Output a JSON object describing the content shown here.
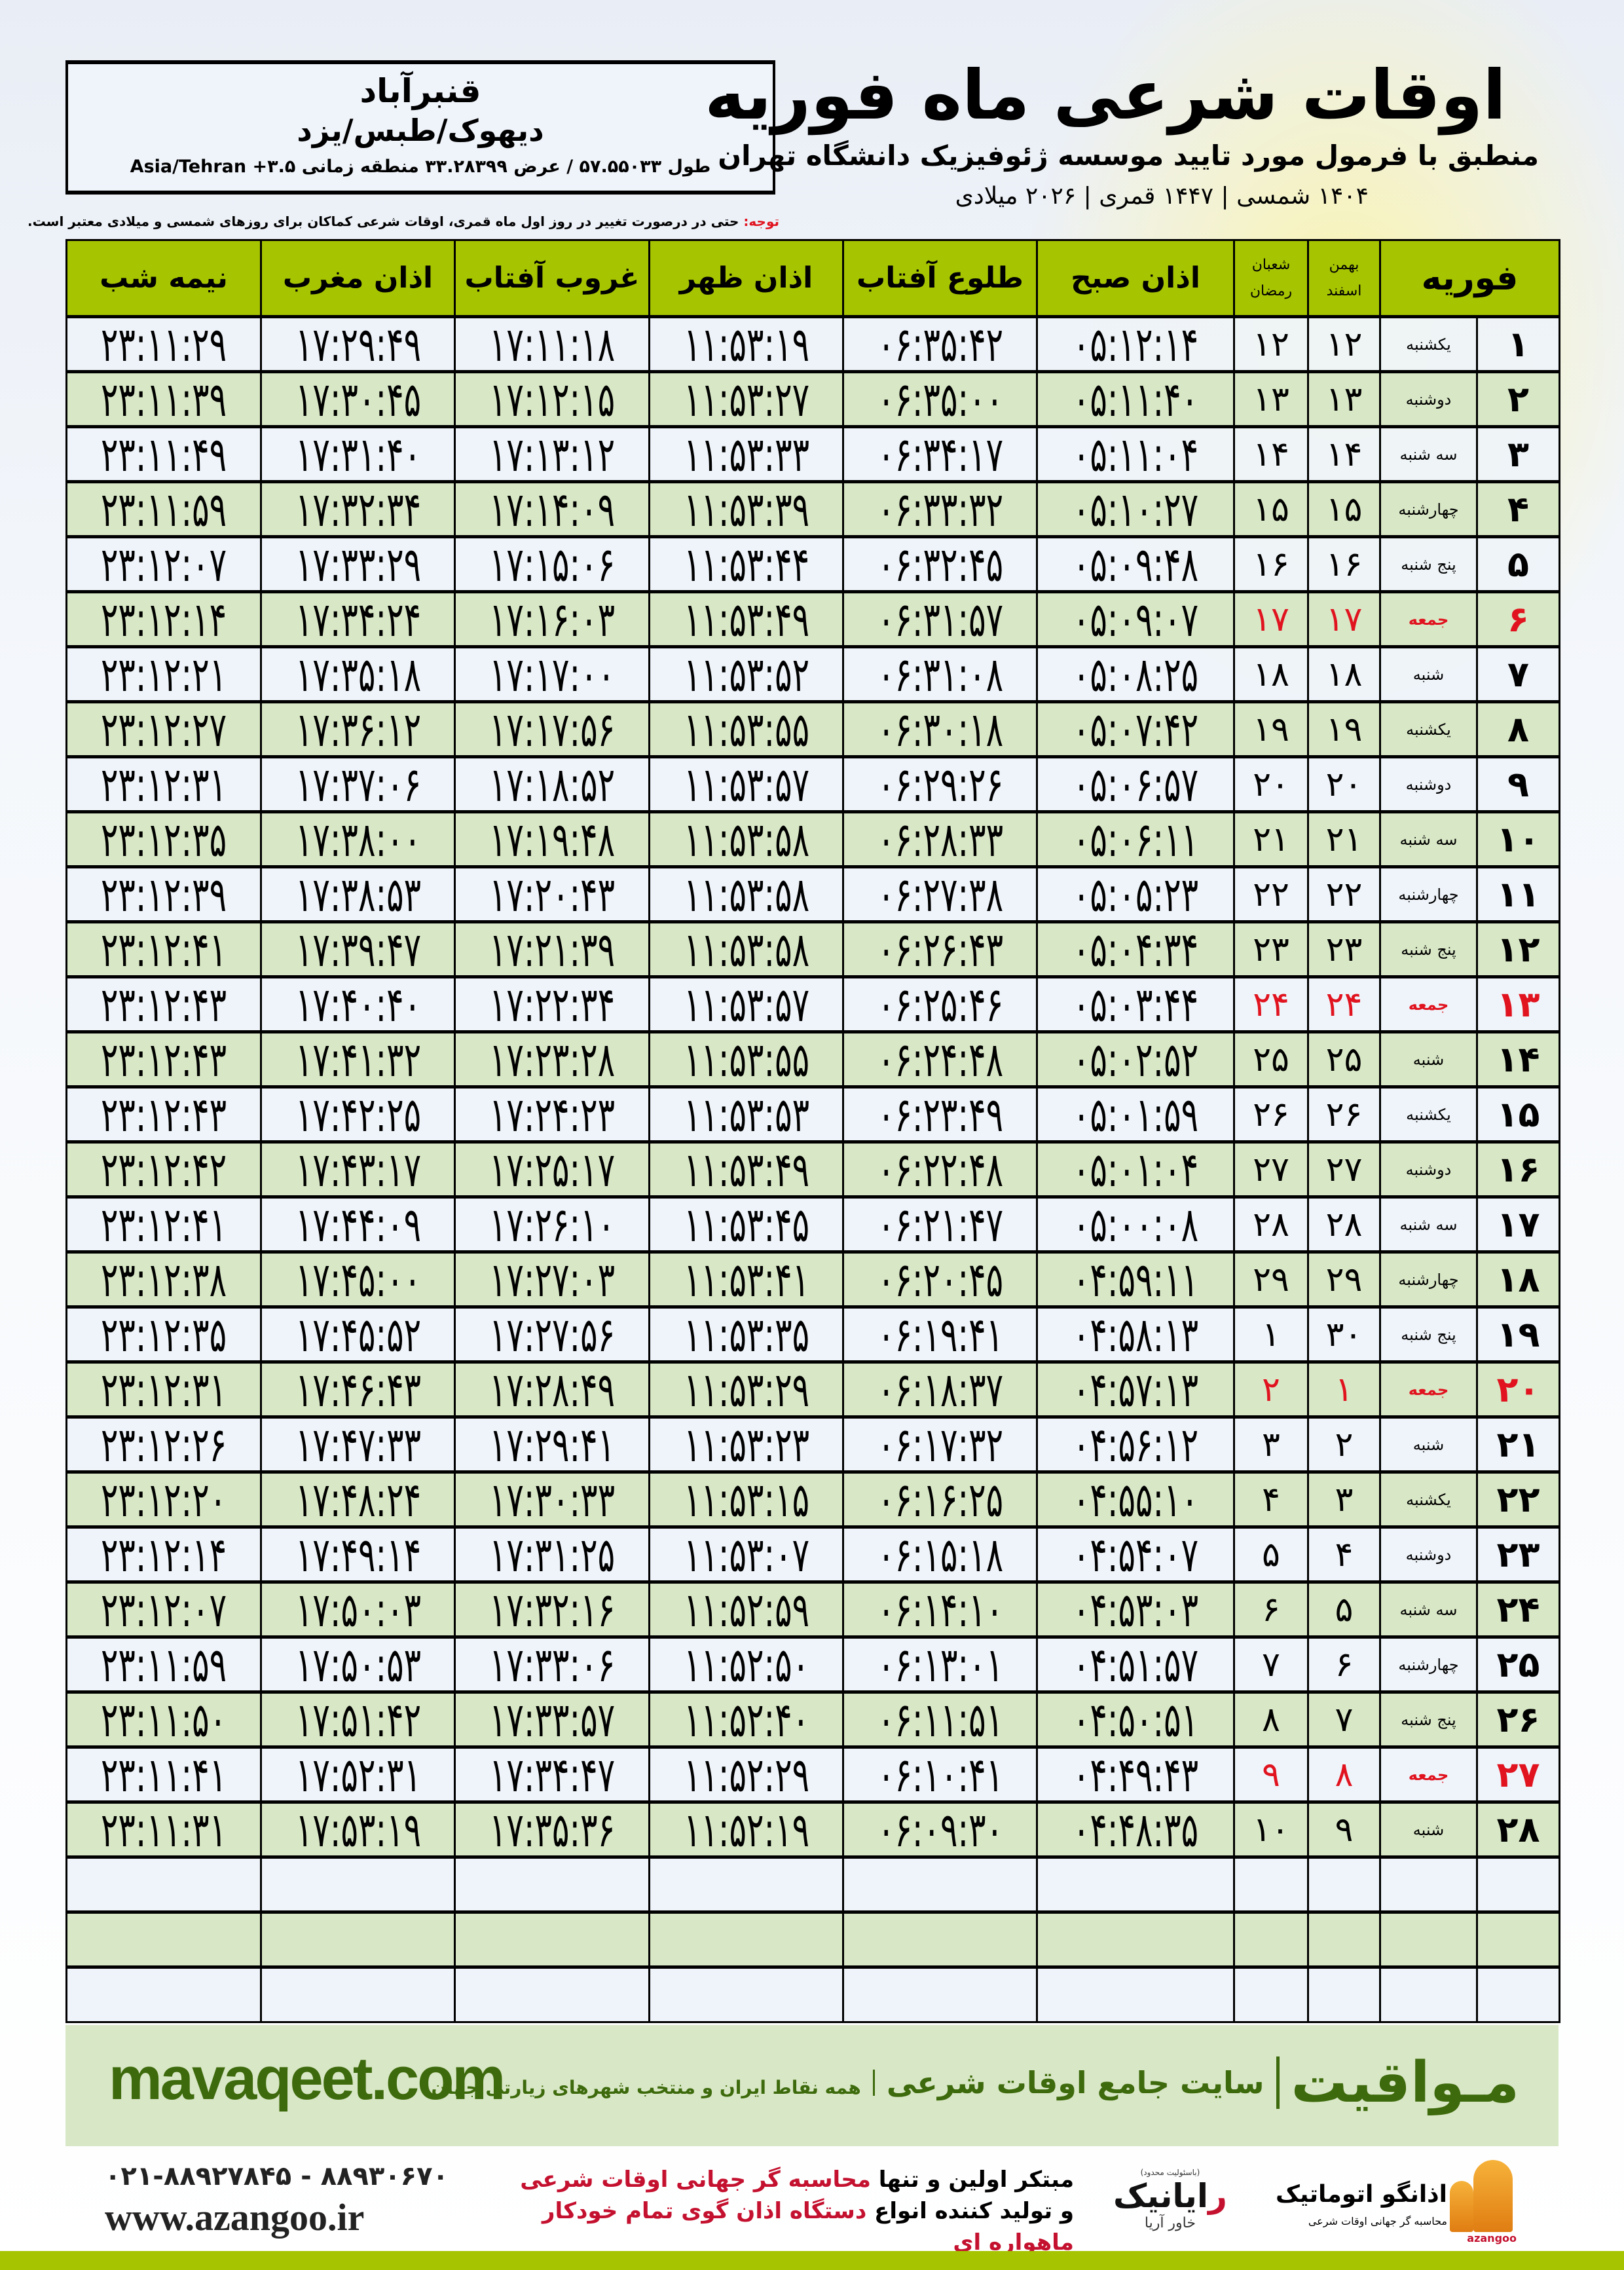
{
  "header": {
    "title": "اوقات شرعی ماه فوریه",
    "subtitle": "منطبق با فرمول مورد تایید موسسه ژئوفیزیک دانشگاه تهران",
    "dates": "۱۴۰۴ شمسی | ۱۴۴۷ قمری | ۲۰۲۶ میلادی"
  },
  "location": {
    "city": "قنبرآباد",
    "region": "دیهوک/طبس/یزد",
    "coords": "طول ۵۷.۵۵۰۳۳ / عرض ۳۳.۲۸۳۹۹ منطقه زمانی ۳.۵+ Asia/Tehran"
  },
  "note": {
    "label": "توجه:",
    "text": " حتی در درصورت تغییر در روز اول ماه قمری، اوقات شرعی کماکان برای روزهای شمسی و میلادی معتبر است."
  },
  "colors": {
    "header_green": "#a6c400",
    "row_green": "#d8e7c5",
    "holiday_red": "#e0131f",
    "brand_green": "#3d6a0c"
  },
  "table": {
    "columns": {
      "month": "فوریه",
      "shamsi_1": "بهمن",
      "shamsi_2": "اسفند",
      "qamari_1": "شعبان",
      "qamari_2": "رمضان",
      "sobh": "اذان صبح",
      "tolu": "طلوع آفتاب",
      "zohr": "اذان ظهر",
      "ghorub": "غروب آفتاب",
      "maghreb": "اذان مغرب",
      "nime": "نیمه شب"
    },
    "rows": [
      {
        "d": "۱",
        "day": "یکشنبه",
        "sh": "۱۲",
        "q": "۱۲",
        "sobh": "۰۵:۱۲:۱۴",
        "tolu": "۰۶:۳۵:۴۲",
        "zohr": "۱۱:۵۳:۱۹",
        "ghorub": "۱۷:۱۱:۱۸",
        "maghreb": "۱۷:۲۹:۴۹",
        "nime": "۲۳:۱۱:۲۹",
        "holiday": false
      },
      {
        "d": "۲",
        "day": "دوشنبه",
        "sh": "۱۳",
        "q": "۱۳",
        "sobh": "۰۵:۱۱:۴۰",
        "tolu": "۰۶:۳۵:۰۰",
        "zohr": "۱۱:۵۳:۲۷",
        "ghorub": "۱۷:۱۲:۱۵",
        "maghreb": "۱۷:۳۰:۴۵",
        "nime": "۲۳:۱۱:۳۹",
        "holiday": false
      },
      {
        "d": "۳",
        "day": "سه شنبه",
        "sh": "۱۴",
        "q": "۱۴",
        "sobh": "۰۵:۱۱:۰۴",
        "tolu": "۰۶:۳۴:۱۷",
        "zohr": "۱۱:۵۳:۳۳",
        "ghorub": "۱۷:۱۳:۱۲",
        "maghreb": "۱۷:۳۱:۴۰",
        "nime": "۲۳:۱۱:۴۹",
        "holiday": false
      },
      {
        "d": "۴",
        "day": "چهارشنبه",
        "sh": "۱۵",
        "q": "۱۵",
        "sobh": "۰۵:۱۰:۲۷",
        "tolu": "۰۶:۳۳:۳۲",
        "zohr": "۱۱:۵۳:۳۹",
        "ghorub": "۱۷:۱۴:۰۹",
        "maghreb": "۱۷:۳۲:۳۴",
        "nime": "۲۳:۱۱:۵۹",
        "holiday": false
      },
      {
        "d": "۵",
        "day": "پنج شنبه",
        "sh": "۱۶",
        "q": "۱۶",
        "sobh": "۰۵:۰۹:۴۸",
        "tolu": "۰۶:۳۲:۴۵",
        "zohr": "۱۱:۵۳:۴۴",
        "ghorub": "۱۷:۱۵:۰۶",
        "maghreb": "۱۷:۳۳:۲۹",
        "nime": "۲۳:۱۲:۰۷",
        "holiday": false
      },
      {
        "d": "۶",
        "day": "جمعه",
        "sh": "۱۷",
        "q": "۱۷",
        "sobh": "۰۵:۰۹:۰۷",
        "tolu": "۰۶:۳۱:۵۷",
        "zohr": "۱۱:۵۳:۴۹",
        "ghorub": "۱۷:۱۶:۰۳",
        "maghreb": "۱۷:۳۴:۲۴",
        "nime": "۲۳:۱۲:۱۴",
        "holiday": true
      },
      {
        "d": "۷",
        "day": "شنبه",
        "sh": "۱۸",
        "q": "۱۸",
        "sobh": "۰۵:۰۸:۲۵",
        "tolu": "۰۶:۳۱:۰۸",
        "zohr": "۱۱:۵۳:۵۲",
        "ghorub": "۱۷:۱۷:۰۰",
        "maghreb": "۱۷:۳۵:۱۸",
        "nime": "۲۳:۱۲:۲۱",
        "holiday": false
      },
      {
        "d": "۸",
        "day": "یکشنبه",
        "sh": "۱۹",
        "q": "۱۹",
        "sobh": "۰۵:۰۷:۴۲",
        "tolu": "۰۶:۳۰:۱۸",
        "zohr": "۱۱:۵۳:۵۵",
        "ghorub": "۱۷:۱۷:۵۶",
        "maghreb": "۱۷:۳۶:۱۲",
        "nime": "۲۳:۱۲:۲۷",
        "holiday": false
      },
      {
        "d": "۹",
        "day": "دوشنبه",
        "sh": "۲۰",
        "q": "۲۰",
        "sobh": "۰۵:۰۶:۵۷",
        "tolu": "۰۶:۲۹:۲۶",
        "zohr": "۱۱:۵۳:۵۷",
        "ghorub": "۱۷:۱۸:۵۲",
        "maghreb": "۱۷:۳۷:۰۶",
        "nime": "۲۳:۱۲:۳۱",
        "holiday": false
      },
      {
        "d": "۱۰",
        "day": "سه شنبه",
        "sh": "۲۱",
        "q": "۲۱",
        "sobh": "۰۵:۰۶:۱۱",
        "tolu": "۰۶:۲۸:۳۳",
        "zohr": "۱۱:۵۳:۵۸",
        "ghorub": "۱۷:۱۹:۴۸",
        "maghreb": "۱۷:۳۸:۰۰",
        "nime": "۲۳:۱۲:۳۵",
        "holiday": false
      },
      {
        "d": "۱۱",
        "day": "چهارشنبه",
        "sh": "۲۲",
        "q": "۲۲",
        "sobh": "۰۵:۰۵:۲۳",
        "tolu": "۰۶:۲۷:۳۸",
        "zohr": "۱۱:۵۳:۵۸",
        "ghorub": "۱۷:۲۰:۴۳",
        "maghreb": "۱۷:۳۸:۵۳",
        "nime": "۲۳:۱۲:۳۹",
        "holiday": false
      },
      {
        "d": "۱۲",
        "day": "پنج شنبه",
        "sh": "۲۳",
        "q": "۲۳",
        "sobh": "۰۵:۰۴:۳۴",
        "tolu": "۰۶:۲۶:۴۳",
        "zohr": "۱۱:۵۳:۵۸",
        "ghorub": "۱۷:۲۱:۳۹",
        "maghreb": "۱۷:۳۹:۴۷",
        "nime": "۲۳:۱۲:۴۱",
        "holiday": false
      },
      {
        "d": "۱۳",
        "day": "جمعه",
        "sh": "۲۴",
        "q": "۲۴",
        "sobh": "۰۵:۰۳:۴۴",
        "tolu": "۰۶:۲۵:۴۶",
        "zohr": "۱۱:۵۳:۵۷",
        "ghorub": "۱۷:۲۲:۳۴",
        "maghreb": "۱۷:۴۰:۴۰",
        "nime": "۲۳:۱۲:۴۳",
        "holiday": true
      },
      {
        "d": "۱۴",
        "day": "شنبه",
        "sh": "۲۵",
        "q": "۲۵",
        "sobh": "۰۵:۰۲:۵۲",
        "tolu": "۰۶:۲۴:۴۸",
        "zohr": "۱۱:۵۳:۵۵",
        "ghorub": "۱۷:۲۳:۲۸",
        "maghreb": "۱۷:۴۱:۳۲",
        "nime": "۲۳:۱۲:۴۳",
        "holiday": false
      },
      {
        "d": "۱۵",
        "day": "یکشنبه",
        "sh": "۲۶",
        "q": "۲۶",
        "sobh": "۰۵:۰۱:۵۹",
        "tolu": "۰۶:۲۳:۴۹",
        "zohr": "۱۱:۵۳:۵۳",
        "ghorub": "۱۷:۲۴:۲۳",
        "maghreb": "۱۷:۴۲:۲۵",
        "nime": "۲۳:۱۲:۴۳",
        "holiday": false
      },
      {
        "d": "۱۶",
        "day": "دوشنبه",
        "sh": "۲۷",
        "q": "۲۷",
        "sobh": "۰۵:۰۱:۰۴",
        "tolu": "۰۶:۲۲:۴۸",
        "zohr": "۱۱:۵۳:۴۹",
        "ghorub": "۱۷:۲۵:۱۷",
        "maghreb": "۱۷:۴۳:۱۷",
        "nime": "۲۳:۱۲:۴۲",
        "holiday": false
      },
      {
        "d": "۱۷",
        "day": "سه شنبه",
        "sh": "۲۸",
        "q": "۲۸",
        "sobh": "۰۵:۰۰:۰۸",
        "tolu": "۰۶:۲۱:۴۷",
        "zohr": "۱۱:۵۳:۴۵",
        "ghorub": "۱۷:۲۶:۱۰",
        "maghreb": "۱۷:۴۴:۰۹",
        "nime": "۲۳:۱۲:۴۱",
        "holiday": false
      },
      {
        "d": "۱۸",
        "day": "چهارشنبه",
        "sh": "۲۹",
        "q": "۲۹",
        "sobh": "۰۴:۵۹:۱۱",
        "tolu": "۰۶:۲۰:۴۵",
        "zohr": "۱۱:۵۳:۴۱",
        "ghorub": "۱۷:۲۷:۰۳",
        "maghreb": "۱۷:۴۵:۰۰",
        "nime": "۲۳:۱۲:۳۸",
        "holiday": false
      },
      {
        "d": "۱۹",
        "day": "پنج شنبه",
        "sh": "۳۰",
        "q": "۱",
        "sobh": "۰۴:۵۸:۱۳",
        "tolu": "۰۶:۱۹:۴۱",
        "zohr": "۱۱:۵۳:۳۵",
        "ghorub": "۱۷:۲۷:۵۶",
        "maghreb": "۱۷:۴۵:۵۲",
        "nime": "۲۳:۱۲:۳۵",
        "holiday": false
      },
      {
        "d": "۲۰",
        "day": "جمعه",
        "sh": "۱",
        "q": "۲",
        "sobh": "۰۴:۵۷:۱۳",
        "tolu": "۰۶:۱۸:۳۷",
        "zohr": "۱۱:۵۳:۲۹",
        "ghorub": "۱۷:۲۸:۴۹",
        "maghreb": "۱۷:۴۶:۴۳",
        "nime": "۲۳:۱۲:۳۱",
        "holiday": true
      },
      {
        "d": "۲۱",
        "day": "شنبه",
        "sh": "۲",
        "q": "۳",
        "sobh": "۰۴:۵۶:۱۲",
        "tolu": "۰۶:۱۷:۳۲",
        "zohr": "۱۱:۵۳:۲۳",
        "ghorub": "۱۷:۲۹:۴۱",
        "maghreb": "۱۷:۴۷:۳۳",
        "nime": "۲۳:۱۲:۲۶",
        "holiday": false
      },
      {
        "d": "۲۲",
        "day": "یکشنبه",
        "sh": "۳",
        "q": "۴",
        "sobh": "۰۴:۵۵:۱۰",
        "tolu": "۰۶:۱۶:۲۵",
        "zohr": "۱۱:۵۳:۱۵",
        "ghorub": "۱۷:۳۰:۳۳",
        "maghreb": "۱۷:۴۸:۲۴",
        "nime": "۲۳:۱۲:۲۰",
        "holiday": false
      },
      {
        "d": "۲۳",
        "day": "دوشنبه",
        "sh": "۴",
        "q": "۵",
        "sobh": "۰۴:۵۴:۰۷",
        "tolu": "۰۶:۱۵:۱۸",
        "zohr": "۱۱:۵۳:۰۷",
        "ghorub": "۱۷:۳۱:۲۵",
        "maghreb": "۱۷:۴۹:۱۴",
        "nime": "۲۳:۱۲:۱۴",
        "holiday": false
      },
      {
        "d": "۲۴",
        "day": "سه شنبه",
        "sh": "۵",
        "q": "۶",
        "sobh": "۰۴:۵۳:۰۳",
        "tolu": "۰۶:۱۴:۱۰",
        "zohr": "۱۱:۵۲:۵۹",
        "ghorub": "۱۷:۳۲:۱۶",
        "maghreb": "۱۷:۵۰:۰۳",
        "nime": "۲۳:۱۲:۰۷",
        "holiday": false
      },
      {
        "d": "۲۵",
        "day": "چهارشنبه",
        "sh": "۶",
        "q": "۷",
        "sobh": "۰۴:۵۱:۵۷",
        "tolu": "۰۶:۱۳:۰۱",
        "zohr": "۱۱:۵۲:۵۰",
        "ghorub": "۱۷:۳۳:۰۶",
        "maghreb": "۱۷:۵۰:۵۳",
        "nime": "۲۳:۱۱:۵۹",
        "holiday": false
      },
      {
        "d": "۲۶",
        "day": "پنج شنبه",
        "sh": "۷",
        "q": "۸",
        "sobh": "۰۴:۵۰:۵۱",
        "tolu": "۰۶:۱۱:۵۱",
        "zohr": "۱۱:۵۲:۴۰",
        "ghorub": "۱۷:۳۳:۵۷",
        "maghreb": "۱۷:۵۱:۴۲",
        "nime": "۲۳:۱۱:۵۰",
        "holiday": false
      },
      {
        "d": "۲۷",
        "day": "جمعه",
        "sh": "۸",
        "q": "۹",
        "sobh": "۰۴:۴۹:۴۳",
        "tolu": "۰۶:۱۰:۴۱",
        "zohr": "۱۱:۵۲:۲۹",
        "ghorub": "۱۷:۳۴:۴۷",
        "maghreb": "۱۷:۵۲:۳۱",
        "nime": "۲۳:۱۱:۴۱",
        "holiday": true
      },
      {
        "d": "۲۸",
        "day": "شنبه",
        "sh": "۹",
        "q": "۱۰",
        "sobh": "۰۴:۴۸:۳۵",
        "tolu": "۰۶:۰۹:۳۰",
        "zohr": "۱۱:۵۲:۱۹",
        "ghorub": "۱۷:۳۵:۳۶",
        "maghreb": "۱۷:۵۳:۱۹",
        "nime": "۲۳:۱۱:۳۱",
        "holiday": false
      }
    ],
    "empty_rows": 3
  },
  "footer": {
    "brand": "مـواقیت",
    "tagline": "سایت جامع اوقات شرعی",
    "sub": "همه نقاط ایران و منتخب شهرهای زیارتی جهان",
    "site": "mavaqeet.com",
    "phone": "۰۲۱-۸۸۹۲۷۸۴۵ - ۸۸۹۳۰۶۷۰",
    "web": "www.azangoo.ir",
    "promo_1a": "مبتکر اولین و تنها ",
    "promo_1b": "محاسبه گر جهانی اوقات شرعی",
    "promo_2a": "و تولید کننده انواع ",
    "promo_2b": "دستگاه اذان گوی تمام خودکار ماهواره ای",
    "rayanik_small": "(باسئولیت محدود)",
    "rayanik_name_r": "ر",
    "rayanik_name": "ایانیک",
    "rayanik_aria": "خاور آریا",
    "azangoo_name": "اذانگو اتوماتیک",
    "azangoo_sub": "محاسبه گر جهانی اوقات شرعی",
    "azangoo_latin": "azangoo"
  }
}
